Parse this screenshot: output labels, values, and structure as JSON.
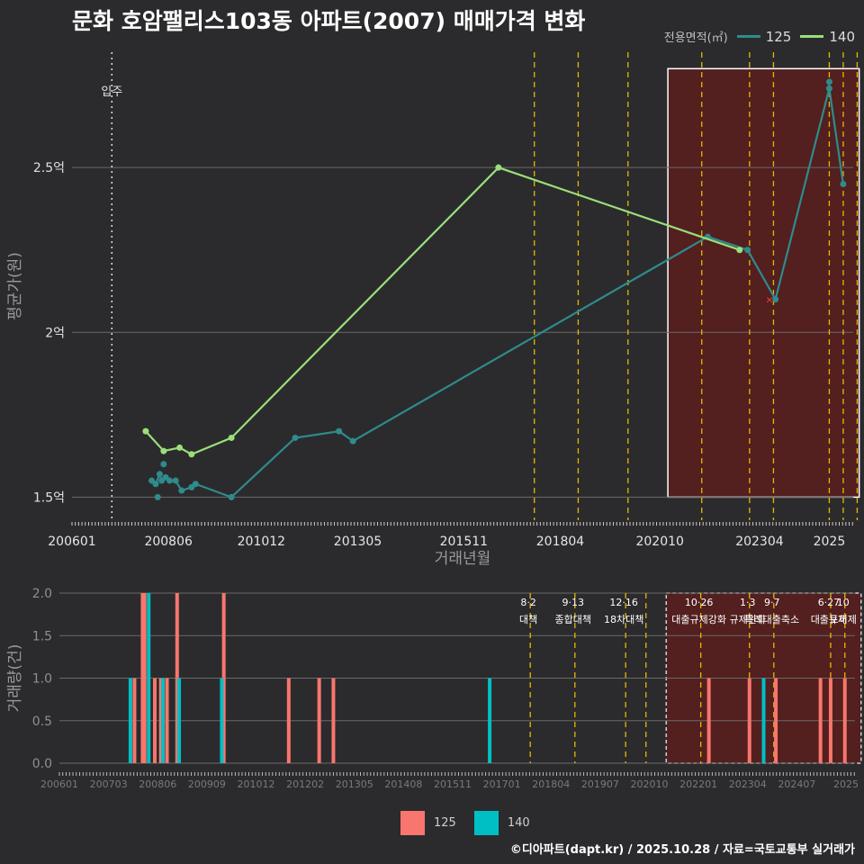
{
  "title": "문화 호암팰리스103동 아파트(2007) 매매가격 변화",
  "credit": "©디아파트(dapt.kr) / 2025.10.28 / 자료=국토교통부 실거래가",
  "colors": {
    "s125": "#2f8b8c",
    "s140": "#9adf7a",
    "bar125": "#f8766d",
    "bar140": "#00bfc4",
    "policy": "#e6b800",
    "highlight": "#5a1d1d"
  },
  "chart_data": [
    {
      "type": "line",
      "title": "문화 호암팰리스103동 아파트(2007) 매매가격 변화",
      "xlabel": "거래년월",
      "ylabel": "평균가(원)",
      "xlim": [
        2006.0,
        2025.6
      ],
      "ylim": [
        1.43,
        2.85
      ],
      "x_ticks": [
        {
          "v": 2006.0,
          "label": "200601"
        },
        {
          "v": 2008.42,
          "label": "200806"
        },
        {
          "v": 2010.75,
          "label": "201012"
        },
        {
          "v": 2013.17,
          "label": "201305"
        },
        {
          "v": 2015.83,
          "label": "201511"
        },
        {
          "v": 2018.25,
          "label": "201804"
        },
        {
          "v": 2020.75,
          "label": "202010"
        },
        {
          "v": 2023.25,
          "label": "202304"
        },
        {
          "v": 2025.0,
          "label": "2025"
        }
      ],
      "y_ticks": [
        {
          "v": 1.5,
          "label": "1.5억"
        },
        {
          "v": 2.0,
          "label": "2억"
        },
        {
          "v": 2.5,
          "label": "2.5억"
        }
      ],
      "legend_title": "전용면적(㎡)",
      "move_in": {
        "x": 2007.0,
        "label": "입주"
      },
      "policy_lines": [
        2017.6,
        2018.7,
        2019.95,
        2021.8,
        2023.0,
        2023.6,
        2025.0,
        2025.35,
        2025.7
      ],
      "highlight": {
        "x0": 2020.95,
        "x1": 2025.75,
        "y0": 1.5,
        "y1": 2.8
      },
      "series": [
        {
          "name": "125",
          "points": [
            [
              2008.0,
              1.55
            ],
            [
              2008.1,
              1.54
            ],
            [
              2008.2,
              1.57
            ],
            [
              2008.25,
              1.55
            ],
            [
              2008.35,
              1.56
            ],
            [
              2008.45,
              1.55
            ],
            [
              2008.6,
              1.55
            ],
            [
              2008.75,
              1.52
            ],
            [
              2009.0,
              1.53
            ],
            [
              2009.1,
              1.54
            ],
            [
              2010.0,
              1.5
            ],
            [
              2011.6,
              1.68
            ],
            [
              2012.7,
              1.7
            ],
            [
              2013.05,
              1.67
            ],
            [
              2021.95,
              2.29
            ],
            [
              2022.95,
              2.25
            ],
            [
              2023.65,
              2.1
            ],
            [
              2025.0,
              2.74
            ],
            [
              2025.35,
              2.45
            ]
          ]
        },
        {
          "name": "140",
          "points": [
            [
              2007.85,
              1.7
            ],
            [
              2008.3,
              1.64
            ],
            [
              2008.7,
              1.65
            ],
            [
              2009.0,
              1.63
            ],
            [
              2010.0,
              1.68
            ],
            [
              2016.7,
              2.5
            ],
            [
              2022.75,
              2.25
            ]
          ]
        }
      ],
      "outliers": [
        {
          "series": "125",
          "x": 2008.15,
          "y": 1.5
        },
        {
          "series": "125",
          "x": 2008.3,
          "y": 1.6
        },
        {
          "series": "125",
          "x": 2025.0,
          "y": 2.76
        }
      ],
      "markers": [
        {
          "x": 2023.5,
          "y": 2.1,
          "symbol": "×"
        }
      ]
    },
    {
      "type": "bar",
      "xlabel": "",
      "ylabel": "거래량(건)",
      "xlim": [
        2006.0,
        2025.6
      ],
      "ylim": [
        0,
        2.0
      ],
      "x_ticks": [
        "200601",
        "200703",
        "200806",
        "200909",
        "201012",
        "201202",
        "201305",
        "201408",
        "201511",
        "201701",
        "201804",
        "201907",
        "202010",
        "202201",
        "202304",
        "202407",
        "2025"
      ],
      "y_ticks": [
        "0.0",
        "0.5",
        "1.0",
        "1.5",
        "2.0"
      ],
      "policy_events": [
        {
          "x": 2017.6,
          "date": "8·2",
          "label": "대책"
        },
        {
          "x": 2018.7,
          "date": "9·13",
          "label": "종합대책"
        },
        {
          "x": 2019.95,
          "date": "12·16",
          "label": "18차대책"
        },
        {
          "x": 2020.45,
          "date": "",
          "label": ""
        },
        {
          "x": 2021.8,
          "date": "10·26",
          "label": "대출규제강화"
        },
        {
          "x": 2023.0,
          "date": "1·3",
          "label": "규제완화"
        },
        {
          "x": 2023.6,
          "date": "9·7",
          "label": "특례대출축소"
        },
        {
          "x": 2025.0,
          "date": "6·27",
          "label": "대출규제"
        },
        {
          "x": 2025.35,
          "date": "10",
          "label": "토허제"
        }
      ],
      "series": [
        {
          "name": "125",
          "bars": [
            [
              2007.85,
              1
            ],
            [
              2008.05,
              2
            ],
            [
              2008.1,
              2
            ],
            [
              2008.35,
              1
            ],
            [
              2008.5,
              1
            ],
            [
              2008.65,
              1
            ],
            [
              2008.9,
              2
            ],
            [
              2010.05,
              2
            ],
            [
              2011.65,
              1
            ],
            [
              2012.4,
              1
            ],
            [
              2012.75,
              1
            ],
            [
              2022.0,
              1
            ],
            [
              2023.0,
              1
            ],
            [
              2023.65,
              1
            ],
            [
              2024.75,
              1
            ],
            [
              2025.0,
              1
            ],
            [
              2025.35,
              1
            ]
          ]
        },
        {
          "name": "140",
          "bars": [
            [
              2007.75,
              1
            ],
            [
              2008.2,
              2
            ],
            [
              2008.55,
              1
            ],
            [
              2008.95,
              1
            ],
            [
              2010.0,
              1
            ],
            [
              2016.6,
              1
            ],
            [
              2023.35,
              1
            ]
          ]
        }
      ]
    }
  ]
}
